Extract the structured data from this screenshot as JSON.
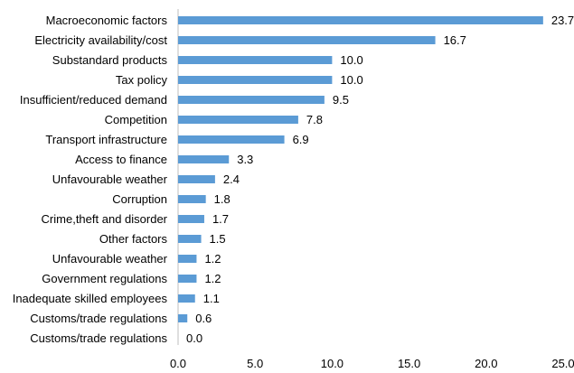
{
  "chart_data": {
    "type": "bar",
    "orientation": "horizontal",
    "categories": [
      "Macroeconomic factors",
      "Electricity availability/cost",
      "Substandard products",
      "Tax policy",
      "Insufficient/reduced demand",
      "Competition",
      "Transport infrastructure",
      "Access to finance",
      "Unfavourable weather",
      "Corruption",
      "Crime,theft and disorder",
      "Other factors",
      "Unfavourable weather",
      "Government regulations",
      "Inadequate skilled employees",
      "Customs/trade regulations",
      "Customs/trade regulations"
    ],
    "values": [
      23.7,
      16.7,
      10.0,
      10.0,
      9.5,
      7.8,
      6.9,
      3.3,
      2.4,
      1.8,
      1.7,
      1.5,
      1.2,
      1.2,
      1.1,
      0.6,
      0.0
    ],
    "value_labels": [
      "23.7",
      "16.7",
      "10.0",
      "10.0",
      "9.5",
      "7.8",
      "6.9",
      "3.3",
      "2.4",
      "1.8",
      "1.7",
      "1.5",
      "1.2",
      "1.2",
      "1.1",
      "0.6",
      "0.0"
    ],
    "xlim": [
      0,
      25
    ],
    "xticks": [
      0,
      5,
      10,
      15,
      20,
      25
    ],
    "xtick_labels": [
      "0.0",
      "5.0",
      "10.0",
      "15.0",
      "20.0",
      "25.0"
    ],
    "title": "",
    "xlabel": "",
    "ylabel": "",
    "grid": false,
    "legend": "none",
    "bar_color": "#5B9BD5"
  }
}
